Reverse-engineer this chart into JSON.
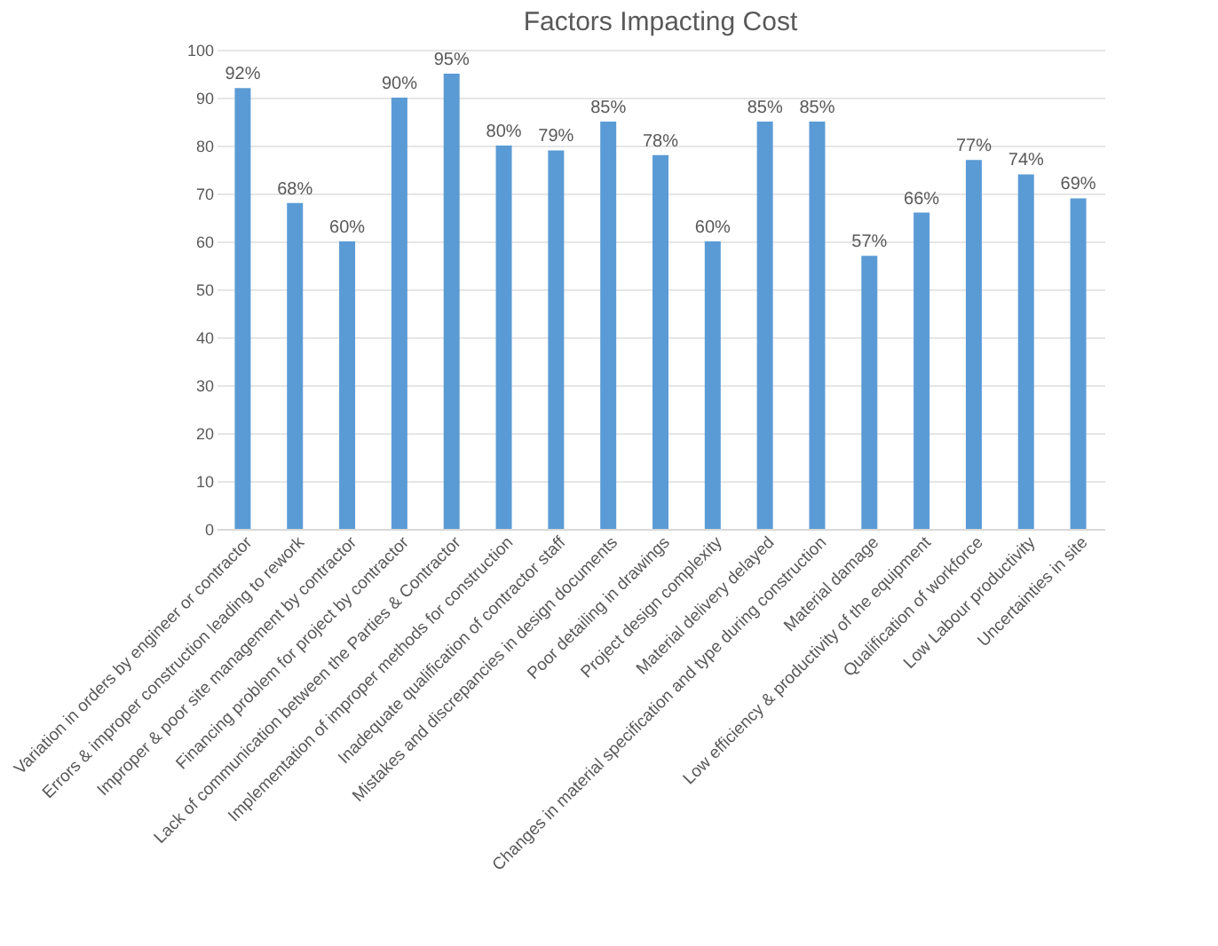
{
  "chart_data": {
    "type": "bar",
    "title": "Factors Impacting Cost",
    "categories": [
      "Variation in orders by engineer or contractor",
      "Errors & improper construction leading to rework",
      "Improper & poor site management by contractor",
      "Financing problem for project by contractor",
      "Lack of communication between the Parties & Contractor",
      "Implementation of improper methods for construction",
      "Inadequate qualification of contractor staff",
      "Mistakes and discrepancies in design documents",
      "Poor detailing in drawings",
      "Project design complexity",
      "Material delivery delayed",
      "Changes in material specification and type during construction",
      "Material damage",
      "Low efficiency & productivity of the equipment",
      "Qualification of workforce",
      "Low Labour productivity",
      "Uncertainties in site"
    ],
    "values": [
      92,
      68,
      60,
      90,
      95,
      80,
      79,
      85,
      78,
      60,
      85,
      85,
      57,
      66,
      77,
      74,
      69
    ],
    "value_labels": [
      "92%",
      "68%",
      "60%",
      "90%",
      "95%",
      "80%",
      "79%",
      "85%",
      "78%",
      "60%",
      "85%",
      "85%",
      "57%",
      "66%",
      "77%",
      "74%",
      "69%"
    ],
    "color": "#5b9bd5",
    "ylim": [
      0,
      100
    ],
    "yticks": [
      0,
      10,
      20,
      30,
      40,
      50,
      60,
      70,
      80,
      90,
      100
    ],
    "grid": "y"
  }
}
